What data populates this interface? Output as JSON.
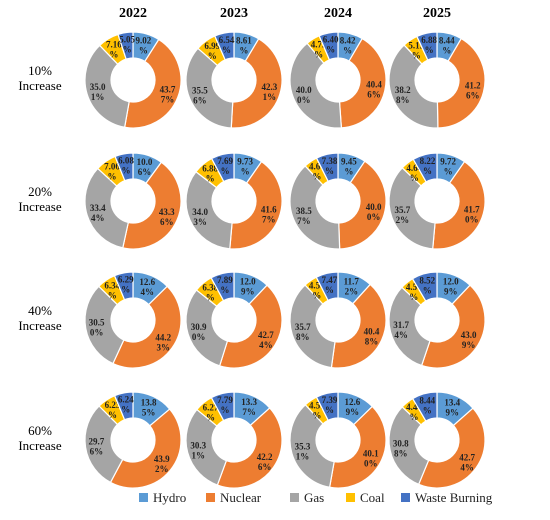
{
  "chart_data": {
    "type": "donut-grid",
    "title": "",
    "columns": [
      "2022",
      "2023",
      "2024",
      "2025"
    ],
    "rows": [
      "10% Increase",
      "20% Increase",
      "40% Increase",
      "60% Increase"
    ],
    "series": [
      "Hydro",
      "Nuclear",
      "Gas",
      "Coal",
      "Waste Burning"
    ],
    "colors": {
      "Hydro": "#5B9BD5",
      "Nuclear": "#ED7D31",
      "Gas": "#A5A5A5",
      "Coal": "#FFC000",
      "Waste Burning": "#4472C4"
    },
    "values": [
      [
        [
          9.02,
          43.77,
          35.01,
          7.16,
          5.05
        ],
        [
          8.61,
          42.31,
          35.56,
          6.99,
          6.54
        ],
        [
          8.42,
          40.46,
          40.0,
          4.72,
          6.4
        ],
        [
          8.44,
          41.26,
          38.28,
          5.13,
          6.88
        ]
      ],
      [
        [
          10.06,
          43.36,
          33.44,
          7.06,
          6.08
        ],
        [
          9.73,
          41.67,
          34.03,
          6.88,
          7.69
        ],
        [
          9.45,
          40.0,
          38.57,
          4.6,
          7.38
        ],
        [
          9.72,
          41.7,
          35.72,
          4.64,
          8.22
        ]
      ],
      [
        [
          12.64,
          44.23,
          30.5,
          6.34,
          6.29
        ],
        [
          12.09,
          42.74,
          30.9,
          6.38,
          7.89
        ],
        [
          11.72,
          40.48,
          35.78,
          4.56,
          7.47
        ],
        [
          12.09,
          43.09,
          31.74,
          4.56,
          8.52
        ]
      ],
      [
        [
          13.85,
          43.92,
          29.76,
          6.23,
          6.24
        ],
        [
          13.37,
          42.26,
          30.31,
          6.27,
          7.79
        ],
        [
          12.69,
          40.1,
          35.31,
          4.51,
          7.39
        ],
        [
          13.49,
          42.74,
          30.88,
          4.44,
          8.44
        ]
      ]
    ],
    "labels": [
      [
        [
          [
            "9.02",
            "%"
          ],
          [
            "43.7",
            "7%"
          ],
          [
            "35.0",
            "1%"
          ],
          [
            "7.16",
            "%"
          ],
          [
            "5.05",
            "%"
          ]
        ],
        [
          [
            "8.61",
            "%"
          ],
          [
            "42.3",
            "1%"
          ],
          [
            "35.5",
            "6%"
          ],
          [
            "6.99",
            "%"
          ],
          [
            "6.54",
            "%"
          ]
        ],
        [
          [
            "8.42",
            "%"
          ],
          [
            "40.4",
            "6%"
          ],
          [
            "40.0",
            "0%"
          ],
          [
            "4.72",
            "%"
          ],
          [
            "6.40",
            "%"
          ]
        ],
        [
          [
            "8.44",
            "%"
          ],
          [
            "41.2",
            "6%"
          ],
          [
            "38.2",
            "8%"
          ],
          [
            "5.13",
            "%"
          ],
          [
            "6.88",
            "%"
          ]
        ]
      ],
      [
        [
          [
            "10.0",
            "6%"
          ],
          [
            "43.3",
            "6%"
          ],
          [
            "33.4",
            "4%"
          ],
          [
            "7.06",
            "%"
          ],
          [
            "6.08",
            "%"
          ]
        ],
        [
          [
            "9.73",
            "%"
          ],
          [
            "41.6",
            "7%"
          ],
          [
            "34.0",
            "3%"
          ],
          [
            "6.88",
            "%"
          ],
          [
            "7.69",
            "%"
          ]
        ],
        [
          [
            "9.45",
            "%"
          ],
          [
            "40.0",
            "0%"
          ],
          [
            "38.5",
            "7%"
          ],
          [
            "4.60",
            "%"
          ],
          [
            "7.38",
            "%"
          ]
        ],
        [
          [
            "9.72",
            "%"
          ],
          [
            "41.7",
            "0%"
          ],
          [
            "35.7",
            "2%"
          ],
          [
            "4.64",
            "%"
          ],
          [
            "8.22",
            "%"
          ]
        ]
      ],
      [
        [
          [
            "12.6",
            "4%"
          ],
          [
            "44.2",
            "3%"
          ],
          [
            "30.5",
            "0%"
          ],
          [
            "6.34",
            "%"
          ],
          [
            "6.29",
            "%"
          ]
        ],
        [
          [
            "12.0",
            "9%"
          ],
          [
            "42.7",
            "4%"
          ],
          [
            "30.9",
            "0%"
          ],
          [
            "6.38",
            "%"
          ],
          [
            "7.89",
            "%"
          ]
        ],
        [
          [
            "11.7",
            "2%"
          ],
          [
            "40.4",
            "8%"
          ],
          [
            "35.7",
            "8%"
          ],
          [
            "4.56",
            "%"
          ],
          [
            "7.47",
            "%"
          ]
        ],
        [
          [
            "12.0",
            "9%"
          ],
          [
            "43.0",
            "9%"
          ],
          [
            "31.7",
            "4%"
          ],
          [
            "4.56",
            "%"
          ],
          [
            "8.52",
            "%"
          ]
        ]
      ],
      [
        [
          [
            "13.8",
            "5%"
          ],
          [
            "43.9",
            "2%"
          ],
          [
            "29.7",
            "6%"
          ],
          [
            "6.23",
            "%"
          ],
          [
            "6.24",
            "%"
          ]
        ],
        [
          [
            "13.3",
            "7%"
          ],
          [
            "42.2",
            "6%"
          ],
          [
            "30.3",
            "1%"
          ],
          [
            "6.27",
            "%"
          ],
          [
            "7.79",
            "%"
          ]
        ],
        [
          [
            "12.6",
            "9%"
          ],
          [
            "40.1",
            "0%"
          ],
          [
            "35.3",
            "1%"
          ],
          [
            "4.51",
            "%"
          ],
          [
            "7.39",
            "%"
          ]
        ],
        [
          [
            "13.4",
            "9%"
          ],
          [
            "42.7",
            "4%"
          ],
          [
            "30.8",
            "8%"
          ],
          [
            "4.44",
            "%"
          ],
          [
            "8.44",
            "%"
          ]
        ]
      ]
    ],
    "legend": {
      "position": "bottom",
      "items": [
        "Hydro",
        "Nuclear",
        "Gas",
        "Coal",
        "Waste Burning"
      ]
    }
  }
}
